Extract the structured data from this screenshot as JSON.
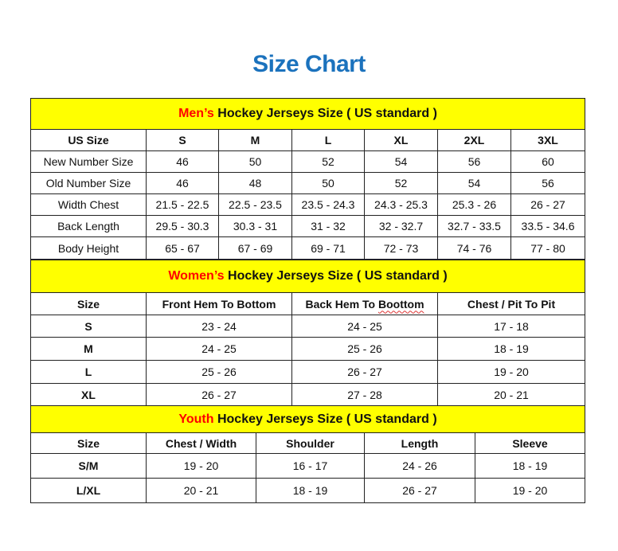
{
  "title": "Size Chart",
  "sections": [
    {
      "id": "men",
      "header_highlight": "Men’s",
      "header_rest": " Hockey Jerseys Size ( US standard )",
      "columns": [
        "US Size",
        "S",
        "M",
        "L",
        "XL",
        "2XL",
        "3XL"
      ],
      "rows": [
        [
          "New Number Size",
          "46",
          "50",
          "52",
          "54",
          "56",
          "60"
        ],
        [
          "Old Number Size",
          "46",
          "48",
          "50",
          "52",
          "54",
          "56"
        ],
        [
          "Width Chest",
          "21.5 - 22.5",
          "22.5 - 23.5",
          "23.5 - 24.3",
          "24.3 - 25.3",
          "25.3 - 26",
          "26 - 27"
        ],
        [
          "Back Length",
          "29.5 - 30.3",
          "30.3 - 31",
          "31 - 32",
          "32 - 32.7",
          "32.7 - 33.5",
          "33.5 - 34.6"
        ],
        [
          "Body Height",
          "65 - 67",
          "67 - 69",
          "69 - 71",
          "72 - 73",
          "74 - 76",
          "77 - 80"
        ]
      ]
    },
    {
      "id": "women",
      "header_highlight": "Women’s",
      "header_rest": " Hockey Jerseys Size ( US standard )",
      "columns": [
        "Size",
        "Front Hem To Bottom",
        "Back Hem To Boottom",
        "Chest / Pit To Pit"
      ],
      "rows": [
        [
          "S",
          "23 - 24",
          "24 - 25",
          "17 - 18"
        ],
        [
          "M",
          "24 - 25",
          "25 - 26",
          "18 - 19"
        ],
        [
          "L",
          "25 - 26",
          "26 - 27",
          "19 - 20"
        ],
        [
          "XL",
          "26 - 27",
          "27 - 28",
          "20 - 21"
        ]
      ]
    },
    {
      "id": "youth",
      "header_highlight": "Youth",
      "header_rest": " Hockey Jerseys Size ( US standard )",
      "columns": [
        "Size",
        "Chest / Width",
        "Shoulder",
        "Length",
        "Sleeve"
      ],
      "rows": [
        [
          "S/M",
          "19 - 20",
          "16 - 17",
          "24 - 26",
          "18 - 19"
        ],
        [
          "L/XL",
          "20 - 21",
          "18 - 19",
          "26 - 27",
          "19 - 20"
        ]
      ]
    }
  ],
  "colors": {
    "title": "#1b72bd",
    "header_bg": "#ffff00",
    "highlight": "#ff0000"
  }
}
